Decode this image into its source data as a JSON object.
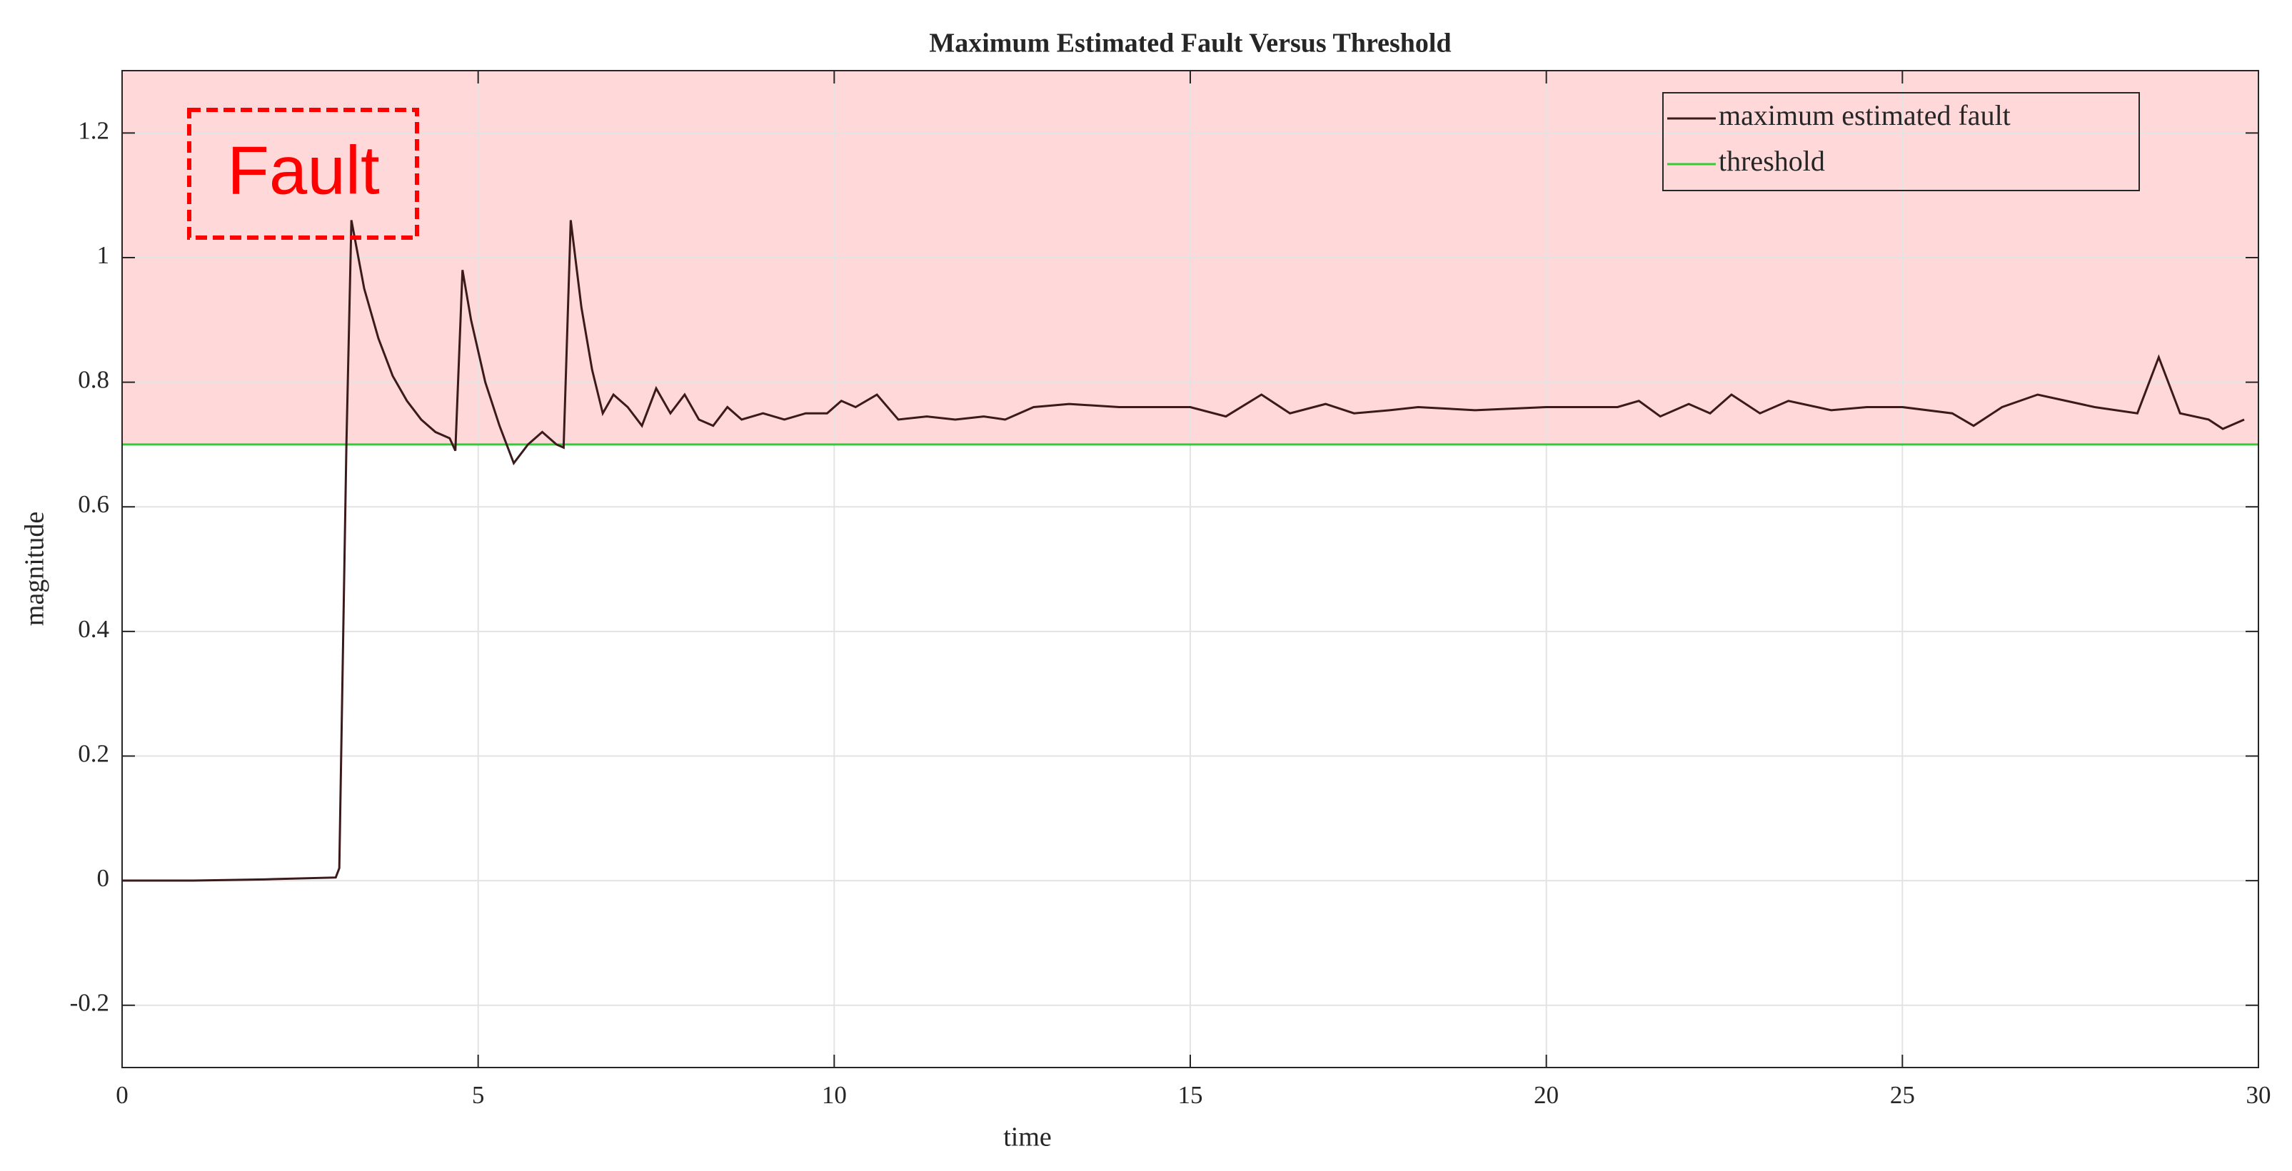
{
  "chart_data": {
    "type": "line",
    "title": "Maximum Estimated Fault Versus Threshold",
    "xlabel": "time",
    "ylabel": "magnitude",
    "annotation": "Fault",
    "xlim": [
      0,
      30
    ],
    "xticks": [
      0,
      5,
      10,
      15,
      20,
      25,
      30
    ],
    "ylim": [
      -0.3,
      1.3
    ],
    "yticks": [
      -0.2,
      0,
      0.2,
      0.4,
      0.6,
      0.8,
      1,
      1.2
    ],
    "grid": true,
    "legend": "upper right",
    "region_color": "#ffd9d9",
    "series": [
      {
        "name": "maximum estimated fault",
        "color": "#3a1a1a",
        "x": [
          0,
          1,
          2,
          3,
          3.05,
          3.15,
          3.22,
          3.4,
          3.6,
          3.8,
          4.0,
          4.2,
          4.4,
          4.6,
          4.68,
          4.78,
          4.9,
          5.1,
          5.3,
          5.5,
          5.7,
          5.9,
          6.1,
          6.2,
          6.3,
          6.45,
          6.6,
          6.75,
          6.9,
          7.1,
          7.3,
          7.5,
          7.7,
          7.9,
          8.1,
          8.3,
          8.5,
          8.7,
          9.0,
          9.3,
          9.6,
          9.9,
          10.1,
          10.3,
          10.6,
          10.9,
          11.3,
          11.7,
          12.1,
          12.4,
          12.8,
          13.3,
          14,
          15,
          15.5,
          16,
          16.4,
          16.9,
          17.3,
          17.8,
          18.2,
          19,
          20,
          21,
          21.3,
          21.6,
          22,
          22.3,
          22.6,
          23,
          23.4,
          24,
          24.5,
          25,
          25.7,
          26,
          26.4,
          26.9,
          27.3,
          27.7,
          28.3,
          28.6,
          28.9,
          29.3,
          29.5,
          29.8
        ],
        "values": [
          0,
          0,
          0.002,
          0.005,
          0.02,
          0.7,
          1.06,
          0.95,
          0.87,
          0.81,
          0.77,
          0.74,
          0.72,
          0.71,
          0.69,
          0.98,
          0.9,
          0.8,
          0.73,
          0.67,
          0.7,
          0.72,
          0.7,
          0.695,
          1.06,
          0.92,
          0.82,
          0.75,
          0.78,
          0.76,
          0.73,
          0.79,
          0.75,
          0.78,
          0.74,
          0.73,
          0.76,
          0.74,
          0.75,
          0.74,
          0.75,
          0.75,
          0.77,
          0.76,
          0.78,
          0.74,
          0.745,
          0.74,
          0.745,
          0.74,
          0.76,
          0.765,
          0.76,
          0.76,
          0.745,
          0.78,
          0.75,
          0.765,
          0.75,
          0.755,
          0.76,
          0.755,
          0.76,
          0.76,
          0.77,
          0.745,
          0.765,
          0.75,
          0.78,
          0.75,
          0.77,
          0.755,
          0.76,
          0.76,
          0.75,
          0.73,
          0.76,
          0.78,
          0.77,
          0.76,
          0.75,
          0.84,
          0.75,
          0.74,
          0.725,
          0.74
        ]
      },
      {
        "name": "threshold",
        "color": "#33cc33",
        "x": [
          0,
          30
        ],
        "values": [
          0.7,
          0.7
        ]
      }
    ]
  }
}
